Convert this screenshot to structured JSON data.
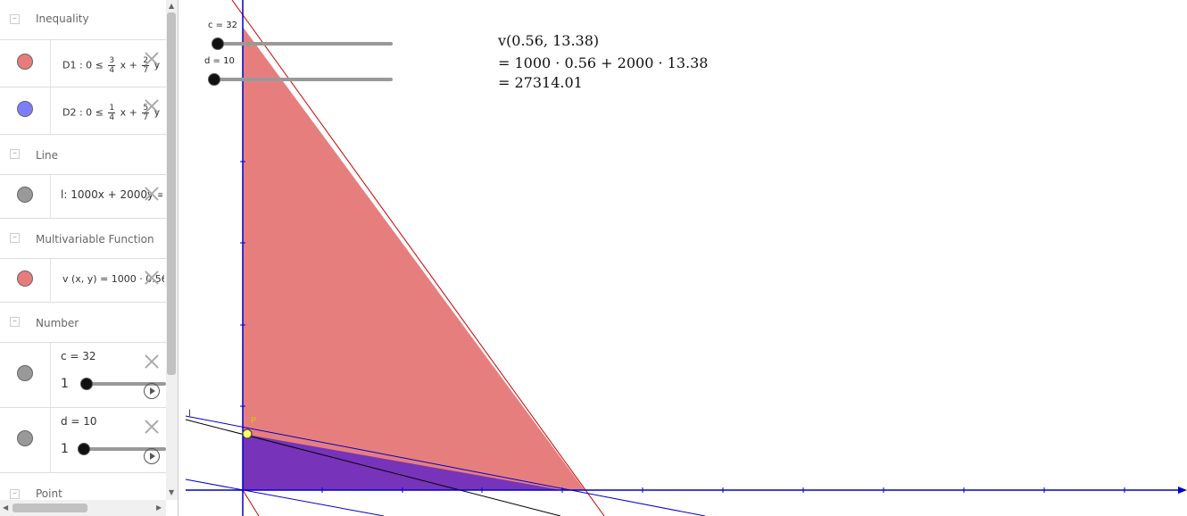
{
  "algebra": {
    "groups": {
      "inequality": "Inequality",
      "line": "Line",
      "multivariable": "Multivariable Function",
      "number": "Number",
      "point": "Point"
    },
    "d1": {
      "prefix": "D1 :  0 ≤",
      "num1": "3",
      "den1": "4",
      "mid": "x +",
      "num2": "2",
      "den2": "7",
      "suffix": "y",
      "color": "#e87c7c"
    },
    "d2": {
      "prefix": "D2 :  0 ≤",
      "num1": "1",
      "den1": "4",
      "mid": "x +",
      "num2": "5",
      "den2": "7",
      "suffix": "y",
      "color": "#7d7dff"
    },
    "line_l": {
      "text": "l:  1000x + 2000y =",
      "color": "#999999"
    },
    "func_v": {
      "text": "v (x, y)  =  1000 · 0.56",
      "color": "#e87c7c"
    },
    "num_c": {
      "label": "c = 32",
      "min": "1",
      "color": "#999999",
      "value_fraction": 0.0
    },
    "num_d": {
      "label": "d = 10",
      "min": "1",
      "color": "#999999",
      "value_fraction": 0.0
    }
  },
  "graphics": {
    "slider_c_label": "c = 32",
    "slider_d_label": "d = 10",
    "point_label": "P",
    "line_label": "l",
    "formula": {
      "line1": "v(0.56, 13.38)",
      "line2": "= 1000 · 0.56 + 2000 · 13.38",
      "line3": "= 27314.01"
    },
    "colors": {
      "region_d1": "#e57373",
      "region_d2": "#6a2bc0",
      "axis": "#0000cc",
      "point": "#ffff66"
    }
  }
}
